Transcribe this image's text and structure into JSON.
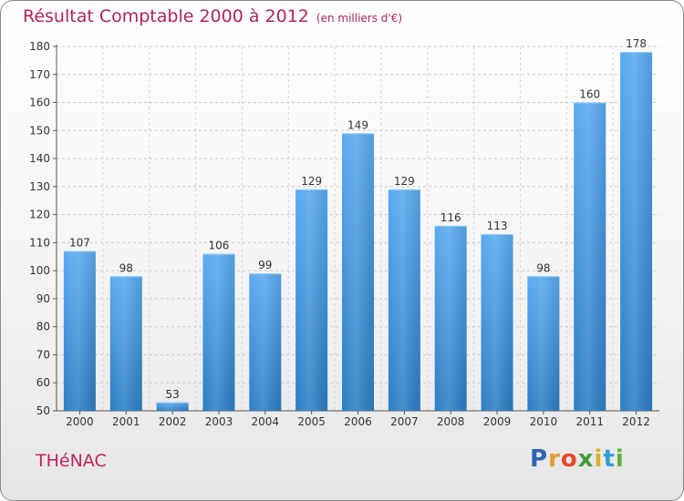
{
  "header": {
    "title": "Résultat Comptable 2000 à 2012",
    "subtitle": "(en milliers d'€)"
  },
  "footer": {
    "commune": "THéNAC",
    "brand": "Proxiti",
    "brand_letters": [
      {
        "ch": "P",
        "color": "#2f63b5"
      },
      {
        "ch": "r",
        "color": "#e39c2f"
      },
      {
        "ch": "o",
        "color": "#e64a2a"
      },
      {
        "ch": "x",
        "color": "#3f9e3a"
      },
      {
        "ch": "i",
        "color": "#d8b42a"
      },
      {
        "ch": "t",
        "color": "#2f9fd4"
      },
      {
        "ch": "i",
        "color": "#5cae3c"
      }
    ]
  },
  "colors": {
    "bar_top": "#5aaaf0",
    "bar_bottom": "#2d7ec4",
    "title": "#b0245b",
    "commune": "#c2225e"
  },
  "chart_data": {
    "type": "bar",
    "title": "Résultat Comptable 2000 à 2012",
    "subtitle": "(en milliers d'€)",
    "categories": [
      "2000",
      "2001",
      "2002",
      "2003",
      "2004",
      "2005",
      "2006",
      "2007",
      "2008",
      "2009",
      "2010",
      "2011",
      "2012"
    ],
    "values": [
      107,
      98,
      53,
      106,
      99,
      129,
      149,
      129,
      116,
      113,
      98,
      160,
      178
    ],
    "ylim": [
      50,
      180
    ],
    "yticks": [
      50,
      60,
      70,
      80,
      90,
      100,
      110,
      120,
      130,
      140,
      150,
      160,
      170,
      180
    ],
    "grid": true,
    "xlabel": "",
    "ylabel": ""
  }
}
